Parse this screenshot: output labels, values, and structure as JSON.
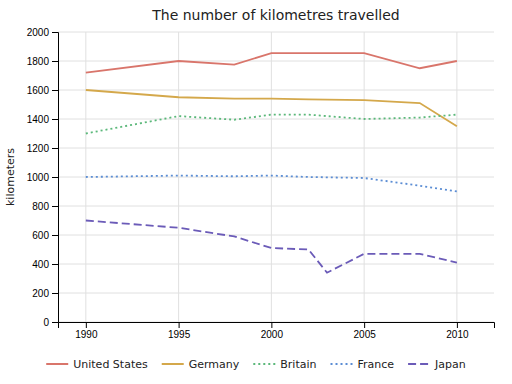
{
  "chart_data": {
    "type": "line",
    "title": "The number of kilometres travelled",
    "ylabel": "kilometers",
    "series": [
      {
        "name": "United States",
        "color": "#d9756b",
        "line_style": "solid",
        "x": [
          1990,
          1995,
          1998,
          2000,
          2002,
          2005,
          2008,
          2010
        ],
        "values": [
          1720,
          1800,
          1775,
          1855,
          1855,
          1855,
          1750,
          1800
        ]
      },
      {
        "name": "Germany",
        "color": "#d4a84b",
        "line_style": "solid",
        "x": [
          1990,
          1995,
          1998,
          2000,
          2002,
          2005,
          2008,
          2010
        ],
        "values": [
          1600,
          1550,
          1540,
          1540,
          1535,
          1530,
          1510,
          1350
        ]
      },
      {
        "name": "Britain",
        "color": "#5bb87a",
        "line_style": "dotted",
        "x": [
          1990,
          1995,
          1998,
          2000,
          2002,
          2005,
          2008,
          2010
        ],
        "values": [
          1300,
          1420,
          1395,
          1430,
          1430,
          1400,
          1410,
          1430
        ]
      },
      {
        "name": "France",
        "color": "#5b8dd4",
        "line_style": "dotted",
        "x": [
          1990,
          1995,
          1998,
          2000,
          2002,
          2005,
          2008,
          2010
        ],
        "values": [
          1000,
          1010,
          1005,
          1010,
          1000,
          993,
          940,
          900
        ]
      },
      {
        "name": "Japan",
        "color": "#6b5bb8",
        "line_style": "dashed",
        "x": [
          1990,
          1995,
          1998,
          2000,
          2002,
          2003,
          2005,
          2008,
          2010
        ],
        "values": [
          700,
          650,
          590,
          510,
          500,
          340,
          470,
          470,
          410
        ]
      }
    ],
    "xlim": [
      1988.5,
      2012
    ],
    "xticks": [
      1990,
      1995,
      2000,
      2005,
      2010
    ],
    "ylim": [
      0,
      2000
    ],
    "yticks": [
      0,
      200,
      400,
      600,
      800,
      1000,
      1200,
      1400,
      1600,
      1800,
      2000
    ],
    "grid": true,
    "legend": "bottom"
  }
}
